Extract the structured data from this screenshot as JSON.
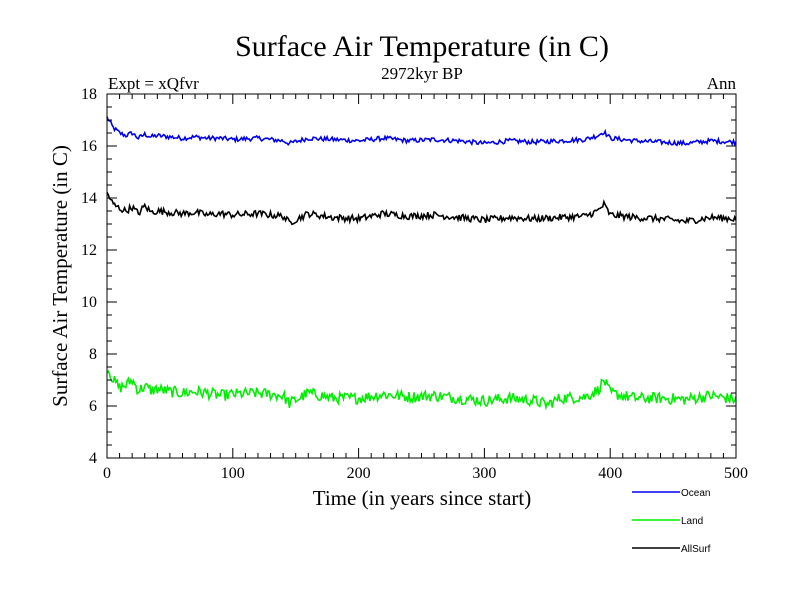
{
  "chart_data": {
    "type": "line",
    "title": "Surface Air Temperature (in C)",
    "subtitle": "2972kyr BP",
    "top_left_label": "Expt = xQfvr",
    "top_right_label": "Ann",
    "xlabel": "Time (in years since start)",
    "ylabel": "Surface Air Temperature (in C)",
    "xlim": [
      0,
      500
    ],
    "ylim": [
      4,
      18
    ],
    "x_ticks": [
      0,
      100,
      200,
      300,
      400,
      500
    ],
    "y_ticks": [
      4,
      6,
      8,
      10,
      12,
      14,
      16,
      18
    ],
    "x_tick_labels": [
      "0",
      "100",
      "200",
      "300",
      "400",
      "500"
    ],
    "y_tick_labels": [
      "4",
      "6",
      "8",
      "10",
      "12",
      "14",
      "16",
      "18"
    ],
    "legend_position": "bottom-right, below plot",
    "series": [
      {
        "name": "Ocean",
        "color": "#0000ee",
        "x": [
          0,
          5,
          10,
          15,
          20,
          25,
          30,
          35,
          40,
          50,
          60,
          70,
          80,
          90,
          100,
          120,
          140,
          145,
          160,
          180,
          200,
          220,
          240,
          260,
          280,
          300,
          320,
          340,
          360,
          380,
          390,
          395,
          400,
          420,
          440,
          460,
          480,
          500
        ],
        "values": [
          17.1,
          16.7,
          16.5,
          16.4,
          16.5,
          16.3,
          16.45,
          16.35,
          16.4,
          16.35,
          16.3,
          16.35,
          16.3,
          16.3,
          16.25,
          16.3,
          16.2,
          16.1,
          16.3,
          16.25,
          16.2,
          16.3,
          16.2,
          16.25,
          16.2,
          16.1,
          16.2,
          16.15,
          16.2,
          16.25,
          16.4,
          16.55,
          16.3,
          16.2,
          16.15,
          16.1,
          16.2,
          16.15
        ]
      },
      {
        "name": "Land",
        "color": "#00ee00",
        "x": [
          0,
          5,
          10,
          15,
          20,
          25,
          30,
          35,
          40,
          50,
          60,
          70,
          80,
          90,
          100,
          120,
          140,
          145,
          160,
          180,
          200,
          220,
          240,
          260,
          280,
          300,
          320,
          340,
          350,
          360,
          380,
          390,
          395,
          400,
          420,
          440,
          460,
          480,
          500
        ],
        "values": [
          7.5,
          7.0,
          6.7,
          6.8,
          7.0,
          6.6,
          6.75,
          6.6,
          6.65,
          6.55,
          6.5,
          6.55,
          6.5,
          6.4,
          6.45,
          6.5,
          6.4,
          6.1,
          6.5,
          6.3,
          6.3,
          6.45,
          6.35,
          6.4,
          6.3,
          6.2,
          6.3,
          6.2,
          6.05,
          6.3,
          6.35,
          6.6,
          7.0,
          6.5,
          6.3,
          6.3,
          6.25,
          6.4,
          6.25
        ]
      },
      {
        "name": "AllSurf",
        "color": "#000000",
        "x": [
          0,
          5,
          10,
          15,
          20,
          25,
          30,
          35,
          40,
          50,
          60,
          70,
          80,
          90,
          100,
          120,
          140,
          145,
          160,
          180,
          200,
          220,
          240,
          260,
          280,
          300,
          320,
          340,
          360,
          380,
          390,
          395,
          400,
          420,
          440,
          460,
          480,
          500
        ],
        "values": [
          14.2,
          13.75,
          13.6,
          13.5,
          13.65,
          13.4,
          13.7,
          13.45,
          13.5,
          13.45,
          13.4,
          13.45,
          13.35,
          13.4,
          13.35,
          13.4,
          13.3,
          13.05,
          13.4,
          13.25,
          13.2,
          13.4,
          13.3,
          13.35,
          13.25,
          13.15,
          13.25,
          13.2,
          13.25,
          13.3,
          13.5,
          13.75,
          13.35,
          13.25,
          13.2,
          13.1,
          13.25,
          13.2
        ]
      }
    ]
  }
}
